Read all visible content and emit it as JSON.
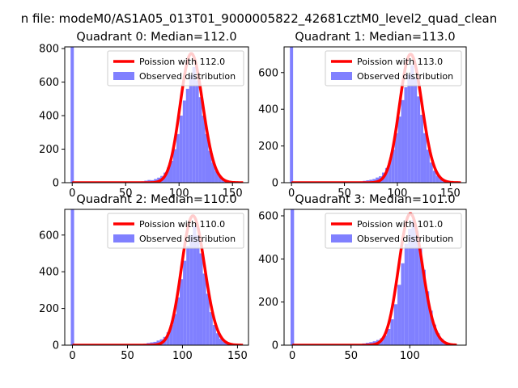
{
  "suptitle": "n file: modeM0/AS1A05_013T01_9000005822_42681cztM0_level2_quad_clean",
  "colors": {
    "poisson": "#ff0000",
    "observed": "#8080ff"
  },
  "chart_data": [
    {
      "type": "histogram",
      "title": "Quadrant 0: Median=112.0",
      "median": 112.0,
      "xlim": [
        -7,
        165
      ],
      "ylim": [
        0,
        810
      ],
      "xticks": [
        0,
        50,
        100,
        150
      ],
      "yticks": [
        0,
        200,
        400,
        600,
        800
      ],
      "legend": {
        "position": "top-right",
        "entries": [
          "Poission with 112.0",
          "Observed distribution"
        ]
      },
      "zero_bin_count": 810,
      "hist": {
        "x": [
          60,
          63,
          66,
          69,
          72,
          75,
          78,
          81,
          84,
          87,
          90,
          93,
          96,
          99,
          102,
          105,
          108,
          111,
          114,
          117,
          120,
          123,
          126,
          129,
          132,
          135,
          138,
          141,
          144,
          147,
          150,
          153,
          156
        ],
        "values": [
          3,
          5,
          8,
          12,
          16,
          15,
          22,
          30,
          40,
          60,
          90,
          130,
          200,
          290,
          400,
          490,
          560,
          640,
          690,
          610,
          510,
          400,
          290,
          190,
          120,
          70,
          40,
          20,
          10,
          5,
          3,
          2,
          1
        ]
      },
      "poisson": {
        "x_range": [
          0,
          160
        ],
        "peak": 770
      }
    },
    {
      "type": "histogram",
      "title": "Quadrant 1: Median=113.0",
      "median": 113.0,
      "xlim": [
        -7,
        165
      ],
      "ylim": [
        0,
        740
      ],
      "xticks": [
        0,
        50,
        100,
        150
      ],
      "yticks": [
        0,
        200,
        400,
        600
      ],
      "legend": {
        "position": "top-right",
        "entries": [
          "Poission with 113.0",
          "Observed distribution"
        ]
      },
      "zero_bin_count": 740,
      "hist": {
        "x": [
          60,
          63,
          66,
          69,
          72,
          75,
          78,
          81,
          84,
          87,
          90,
          93,
          96,
          99,
          102,
          105,
          108,
          111,
          114,
          117,
          120,
          123,
          126,
          129,
          132,
          135,
          138,
          141,
          144,
          147,
          150,
          153,
          156
        ],
        "values": [
          3,
          5,
          7,
          10,
          13,
          16,
          20,
          28,
          35,
          55,
          80,
          120,
          180,
          270,
          360,
          450,
          520,
          590,
          640,
          570,
          470,
          370,
          270,
          180,
          110,
          65,
          38,
          20,
          10,
          5,
          3,
          2,
          1
        ]
      },
      "poisson": {
        "x_range": [
          0,
          160
        ],
        "peak": 700
      }
    },
    {
      "type": "histogram",
      "title": "Quadrant 2: Median=110.0",
      "median": 110.0,
      "xlim": [
        -7,
        160
      ],
      "ylim": [
        0,
        740
      ],
      "xticks": [
        0,
        50,
        100,
        150
      ],
      "yticks": [
        0,
        200,
        400,
        600
      ],
      "legend": {
        "position": "top-right",
        "entries": [
          "Poission with 110.0",
          "Observed distribution"
        ]
      },
      "zero_bin_count": 740,
      "hist": {
        "x": [
          60,
          63,
          66,
          69,
          72,
          75,
          78,
          81,
          84,
          87,
          90,
          93,
          96,
          99,
          102,
          105,
          108,
          111,
          114,
          117,
          120,
          123,
          126,
          129,
          132,
          135,
          138,
          141,
          144,
          147,
          150
        ],
        "values": [
          3,
          5,
          8,
          12,
          15,
          18,
          25,
          32,
          45,
          70,
          110,
          170,
          260,
          360,
          460,
          540,
          600,
          650,
          600,
          500,
          390,
          280,
          180,
          110,
          65,
          35,
          18,
          9,
          4,
          2,
          1
        ]
      },
      "poisson": {
        "x_range": [
          0,
          155
        ],
        "peak": 705
      }
    },
    {
      "type": "histogram",
      "title": "Quadrant 3: Median=101.0",
      "median": 101.0,
      "xlim": [
        -7,
        148
      ],
      "ylim": [
        0,
        630
      ],
      "xticks": [
        0,
        50,
        100
      ],
      "yticks": [
        0,
        200,
        400,
        600
      ],
      "legend": {
        "position": "top-right",
        "entries": [
          "Poission with 101.0",
          "Observed distribution"
        ]
      },
      "zero_bin_count": 630,
      "hist": {
        "x": [
          55,
          58,
          61,
          64,
          67,
          70,
          73,
          76,
          79,
          82,
          85,
          88,
          91,
          94,
          97,
          100,
          103,
          106,
          109,
          112,
          115,
          118,
          121,
          124,
          127,
          130,
          133,
          136,
          139
        ],
        "values": [
          3,
          5,
          8,
          11,
          14,
          18,
          24,
          32,
          45,
          75,
          120,
          190,
          280,
          380,
          470,
          540,
          580,
          530,
          450,
          350,
          250,
          160,
          95,
          55,
          30,
          15,
          7,
          3,
          1
        ]
      },
      "poisson": {
        "x_range": [
          0,
          140
        ],
        "peak": 610
      }
    }
  ]
}
